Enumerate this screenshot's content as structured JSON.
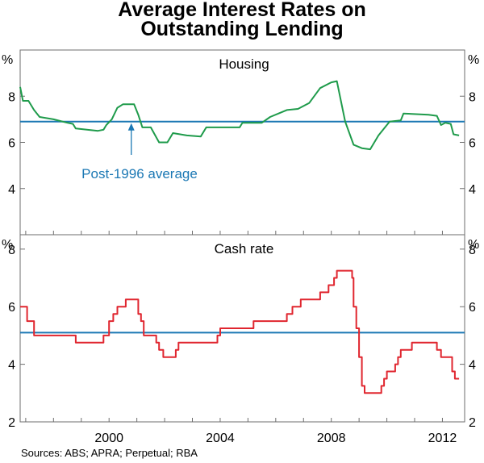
{
  "title_line1": "Average Interest Rates on",
  "title_line2": "Outstanding Lending",
  "source": "Sources: ABS; APRA; Perpetual; RBA",
  "colors": {
    "housing": "#1f9b4b",
    "cash": "#e0262f",
    "average": "#1b78b4",
    "frame": "#6e6e6e"
  },
  "chart_data": [
    {
      "type": "line",
      "panel": "top",
      "title": "Housing",
      "ylabel": "%",
      "ylim": [
        2,
        10
      ],
      "yticks": [
        4,
        6,
        8
      ],
      "xlim": [
        1996.8,
        2012.8
      ],
      "xticks": [
        2000,
        2004,
        2008,
        2012
      ],
      "average": {
        "label": "Post-1996 average",
        "value": 6.9,
        "arrow_at": 2000.8
      },
      "series": [
        {
          "name": "Housing",
          "points": [
            [
              1996.8,
              8.4
            ],
            [
              1996.9,
              7.8
            ],
            [
              1997.1,
              7.8
            ],
            [
              1997.3,
              7.4
            ],
            [
              1997.5,
              7.1
            ],
            [
              1998.0,
              7.0
            ],
            [
              1998.5,
              6.85
            ],
            [
              1998.7,
              6.8
            ],
            [
              1998.8,
              6.6
            ],
            [
              1999.2,
              6.55
            ],
            [
              1999.6,
              6.5
            ],
            [
              1999.8,
              6.55
            ],
            [
              1999.9,
              6.75
            ],
            [
              2000.1,
              7.0
            ],
            [
              2000.3,
              7.5
            ],
            [
              2000.5,
              7.65
            ],
            [
              2000.9,
              7.65
            ],
            [
              2001.05,
              7.2
            ],
            [
              2001.2,
              6.65
            ],
            [
              2001.5,
              6.65
            ],
            [
              2001.8,
              6.0
            ],
            [
              2002.1,
              6.0
            ],
            [
              2002.3,
              6.4
            ],
            [
              2002.8,
              6.3
            ],
            [
              2003.3,
              6.25
            ],
            [
              2003.5,
              6.65
            ],
            [
              2004.7,
              6.65
            ],
            [
              2004.8,
              6.85
            ],
            [
              2005.5,
              6.85
            ],
            [
              2005.8,
              7.1
            ],
            [
              2006.1,
              7.25
            ],
            [
              2006.4,
              7.4
            ],
            [
              2006.8,
              7.45
            ],
            [
              2007.2,
              7.7
            ],
            [
              2007.6,
              8.35
            ],
            [
              2008.0,
              8.6
            ],
            [
              2008.2,
              8.65
            ],
            [
              2008.5,
              6.9
            ],
            [
              2008.8,
              5.9
            ],
            [
              2009.1,
              5.75
            ],
            [
              2009.4,
              5.7
            ],
            [
              2009.7,
              6.3
            ],
            [
              2010.1,
              6.9
            ],
            [
              2010.5,
              6.95
            ],
            [
              2010.6,
              7.25
            ],
            [
              2011.5,
              7.2
            ],
            [
              2011.8,
              7.15
            ],
            [
              2011.95,
              6.75
            ],
            [
              2012.1,
              6.85
            ],
            [
              2012.3,
              6.8
            ],
            [
              2012.4,
              6.35
            ],
            [
              2012.6,
              6.3
            ]
          ]
        }
      ]
    },
    {
      "type": "line",
      "panel": "bottom",
      "title": "Cash rate",
      "ylabel": "%",
      "ylim": [
        2,
        8.5
      ],
      "yticks": [
        2,
        4,
        6,
        8
      ],
      "xlim": [
        1996.8,
        2012.8
      ],
      "xticks": [
        2000,
        2004,
        2008,
        2012
      ],
      "average": {
        "value": 5.1
      },
      "series": [
        {
          "name": "Cash rate",
          "points": [
            [
              1996.8,
              6.0
            ],
            [
              1997.05,
              6.0
            ],
            [
              1997.05,
              5.5
            ],
            [
              1997.3,
              5.5
            ],
            [
              1997.3,
              5.0
            ],
            [
              1998.8,
              5.0
            ],
            [
              1998.8,
              4.75
            ],
            [
              1999.8,
              4.75
            ],
            [
              1999.8,
              5.0
            ],
            [
              2000.0,
              5.0
            ],
            [
              2000.0,
              5.5
            ],
            [
              2000.15,
              5.5
            ],
            [
              2000.15,
              5.75
            ],
            [
              2000.3,
              5.75
            ],
            [
              2000.3,
              6.0
            ],
            [
              2000.6,
              6.0
            ],
            [
              2000.6,
              6.25
            ],
            [
              2001.05,
              6.25
            ],
            [
              2001.05,
              5.75
            ],
            [
              2001.15,
              5.75
            ],
            [
              2001.15,
              5.5
            ],
            [
              2001.25,
              5.5
            ],
            [
              2001.25,
              5.0
            ],
            [
              2001.7,
              5.0
            ],
            [
              2001.7,
              4.75
            ],
            [
              2001.8,
              4.75
            ],
            [
              2001.8,
              4.5
            ],
            [
              2001.95,
              4.5
            ],
            [
              2001.95,
              4.25
            ],
            [
              2002.4,
              4.25
            ],
            [
              2002.4,
              4.5
            ],
            [
              2002.5,
              4.5
            ],
            [
              2002.5,
              4.75
            ],
            [
              2003.9,
              4.75
            ],
            [
              2003.9,
              5.0
            ],
            [
              2004.0,
              5.0
            ],
            [
              2004.0,
              5.25
            ],
            [
              2005.2,
              5.25
            ],
            [
              2005.2,
              5.5
            ],
            [
              2006.4,
              5.5
            ],
            [
              2006.4,
              5.75
            ],
            [
              2006.6,
              5.75
            ],
            [
              2006.6,
              6.0
            ],
            [
              2006.9,
              6.0
            ],
            [
              2006.9,
              6.25
            ],
            [
              2007.6,
              6.25
            ],
            [
              2007.6,
              6.5
            ],
            [
              2007.9,
              6.5
            ],
            [
              2007.9,
              6.75
            ],
            [
              2008.1,
              6.75
            ],
            [
              2008.1,
              7.0
            ],
            [
              2008.2,
              7.0
            ],
            [
              2008.2,
              7.25
            ],
            [
              2008.75,
              7.25
            ],
            [
              2008.75,
              7.0
            ],
            [
              2008.8,
              7.0
            ],
            [
              2008.8,
              6.0
            ],
            [
              2008.9,
              6.0
            ],
            [
              2008.9,
              5.25
            ],
            [
              2009.0,
              5.25
            ],
            [
              2009.0,
              4.25
            ],
            [
              2009.1,
              4.25
            ],
            [
              2009.1,
              3.25
            ],
            [
              2009.2,
              3.25
            ],
            [
              2009.2,
              3.0
            ],
            [
              2009.8,
              3.0
            ],
            [
              2009.8,
              3.25
            ],
            [
              2009.9,
              3.25
            ],
            [
              2009.9,
              3.5
            ],
            [
              2010.0,
              3.5
            ],
            [
              2010.0,
              3.75
            ],
            [
              2010.3,
              3.75
            ],
            [
              2010.3,
              4.0
            ],
            [
              2010.4,
              4.0
            ],
            [
              2010.4,
              4.25
            ],
            [
              2010.5,
              4.25
            ],
            [
              2010.5,
              4.5
            ],
            [
              2010.9,
              4.5
            ],
            [
              2010.9,
              4.75
            ],
            [
              2011.8,
              4.75
            ],
            [
              2011.8,
              4.5
            ],
            [
              2011.95,
              4.5
            ],
            [
              2011.95,
              4.25
            ],
            [
              2012.35,
              4.25
            ],
            [
              2012.35,
              3.75
            ],
            [
              2012.45,
              3.75
            ],
            [
              2012.45,
              3.5
            ],
            [
              2012.6,
              3.5
            ]
          ]
        }
      ]
    }
  ]
}
